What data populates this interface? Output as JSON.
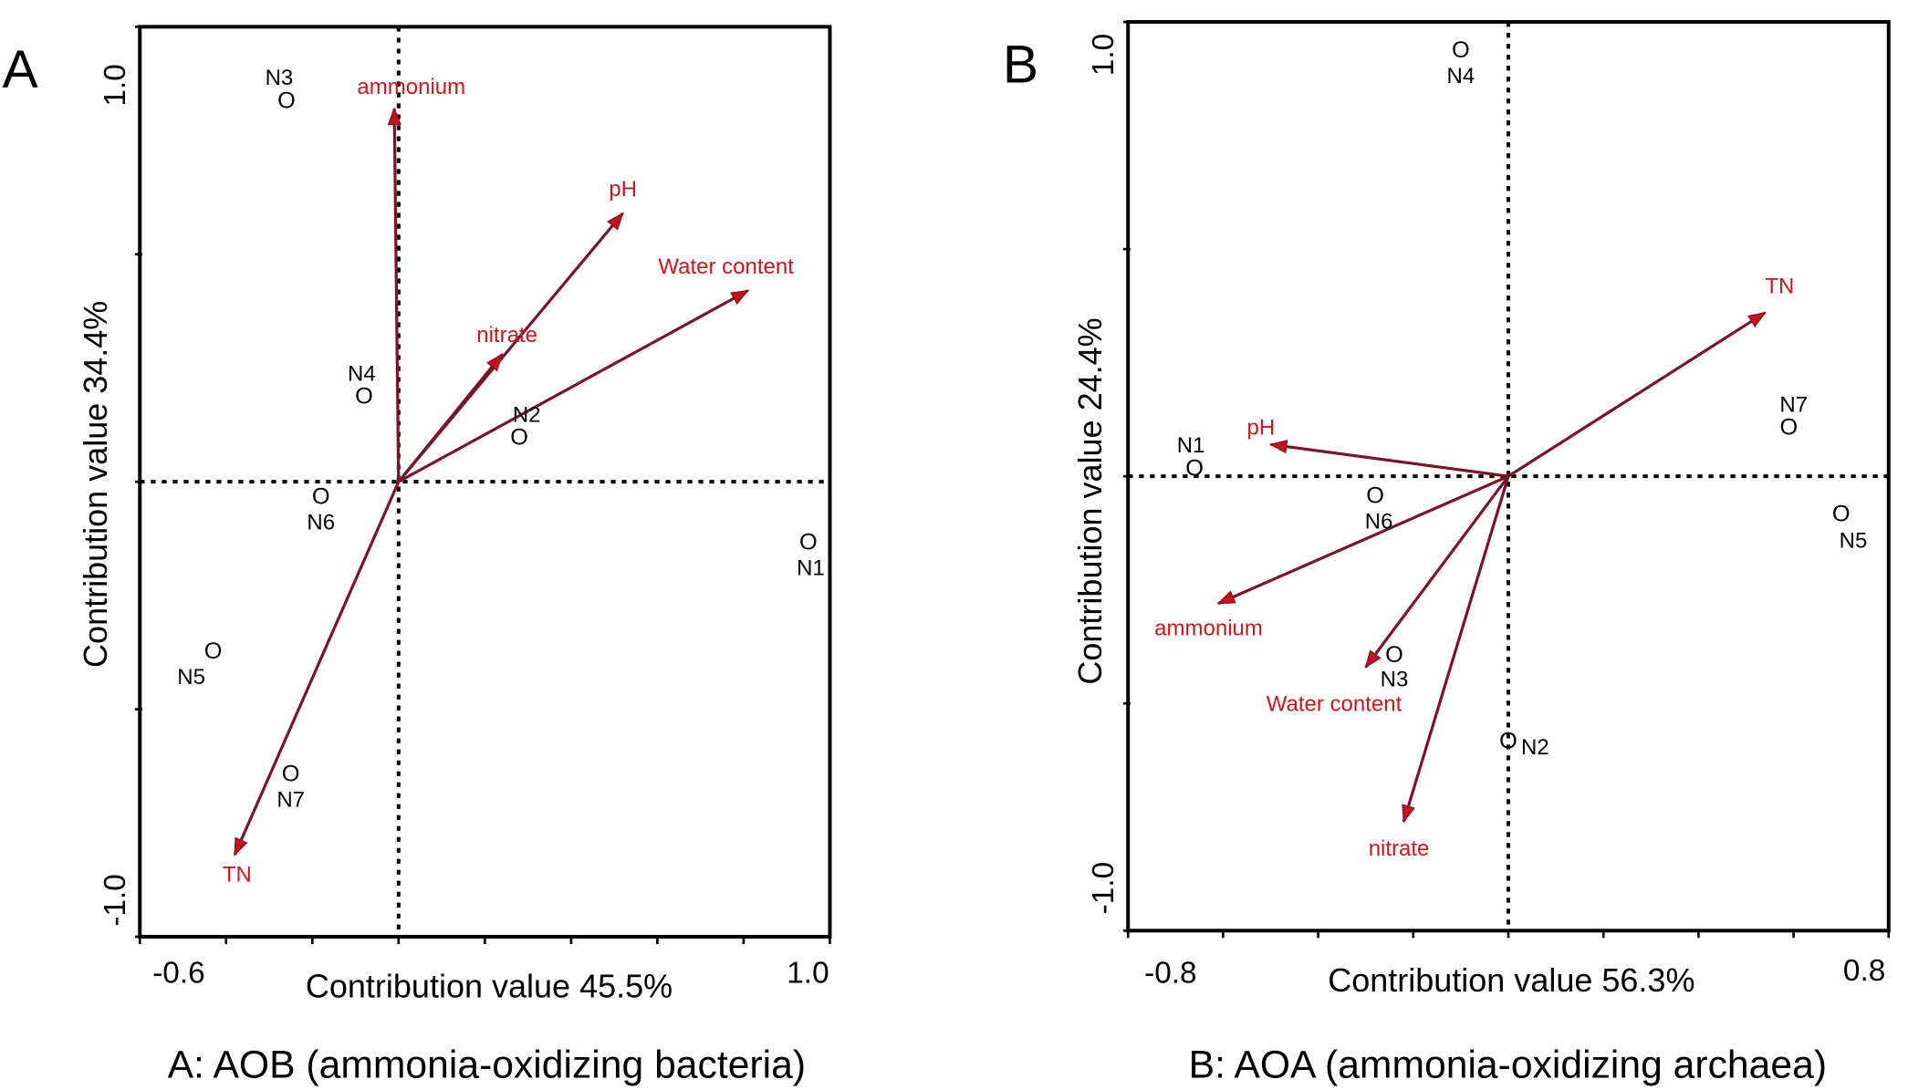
{
  "chart_data": [
    {
      "type": "scatter",
      "subtype": "ordination-biplot",
      "panel_label": "A",
      "title": "A: AOB (ammonia-oxidizing bacteria)",
      "xlabel": "Contribution value 45.5%",
      "ylabel": "Contribution value 34.4%",
      "xlim": [
        -0.6,
        1.0
      ],
      "ylim": [
        -1.0,
        1.0
      ],
      "x_tick_labels": [
        "-0.6",
        "1.0"
      ],
      "y_tick_labels": [
        "1.0",
        "-1.0"
      ],
      "x_ticks": [
        -0.6,
        -0.4,
        -0.2,
        0.0,
        0.2,
        0.4,
        0.6,
        0.8,
        1.0
      ],
      "y_ticks": [
        -1.0,
        -0.5,
        0.0,
        0.5,
        1.0
      ],
      "grid": false,
      "vectors": [
        {
          "name": "ammonium",
          "x": -0.01,
          "y": 0.82
        },
        {
          "name": "pH",
          "x": 0.52,
          "y": 0.59
        },
        {
          "name": "Water content",
          "x": 0.81,
          "y": 0.42
        },
        {
          "name": "nitrate",
          "x": 0.24,
          "y": 0.28
        },
        {
          "name": "TN",
          "x": -0.38,
          "y": -0.82
        }
      ],
      "samples": [
        {
          "name": "N1",
          "x": 0.95,
          "y": -0.13
        },
        {
          "name": "N2",
          "x": 0.28,
          "y": 0.1
        },
        {
          "name": "N3",
          "x": -0.26,
          "y": 0.84
        },
        {
          "name": "N4",
          "x": -0.08,
          "y": 0.19
        },
        {
          "name": "N5",
          "x": -0.43,
          "y": -0.37
        },
        {
          "name": "N6",
          "x": -0.18,
          "y": -0.03
        },
        {
          "name": "N7",
          "x": -0.25,
          "y": -0.64
        }
      ],
      "sample_marker": "O",
      "colors": {
        "vector": "#7a1428",
        "vector_label": "#d0141e",
        "sample": "#000000"
      }
    },
    {
      "type": "scatter",
      "subtype": "ordination-biplot",
      "panel_label": "B",
      "title": "B: AOA (ammonia-oxidizing archaea)",
      "xlabel": "Contribution value 56.3%",
      "ylabel": "Contribution value 24.4%",
      "xlim": [
        -0.8,
        0.8
      ],
      "ylim": [
        -1.0,
        1.0
      ],
      "x_tick_labels": [
        "-0.8",
        "0.8"
      ],
      "y_tick_labels": [
        "1.0",
        "-1.0"
      ],
      "x_ticks": [
        -0.8,
        -0.6,
        -0.4,
        -0.2,
        0.0,
        0.2,
        0.4,
        0.6,
        0.8
      ],
      "y_ticks": [
        -1.0,
        -0.5,
        0.0,
        0.5,
        1.0
      ],
      "grid": false,
      "vectors": [
        {
          "name": "TN",
          "x": 0.54,
          "y": 0.36
        },
        {
          "name": "pH",
          "x": -0.5,
          "y": 0.07
        },
        {
          "name": "ammonium",
          "x": -0.61,
          "y": -0.28
        },
        {
          "name": "Water content",
          "x": -0.3,
          "y": -0.42
        },
        {
          "name": "nitrate",
          "x": -0.22,
          "y": -0.76
        }
      ],
      "samples": [
        {
          "name": "N1",
          "x": -0.66,
          "y": 0.02
        },
        {
          "name": "N2",
          "x": 0.0,
          "y": -0.58
        },
        {
          "name": "N3",
          "x": -0.24,
          "y": -0.39
        },
        {
          "name": "N4",
          "x": -0.1,
          "y": 0.94
        },
        {
          "name": "N5",
          "x": 0.7,
          "y": -0.08
        },
        {
          "name": "N6",
          "x": -0.28,
          "y": -0.04
        },
        {
          "name": "N7",
          "x": 0.59,
          "y": 0.11
        }
      ],
      "sample_marker": "O",
      "colors": {
        "vector": "#7a1428",
        "vector_label": "#d0141e",
        "sample": "#000000"
      }
    }
  ]
}
